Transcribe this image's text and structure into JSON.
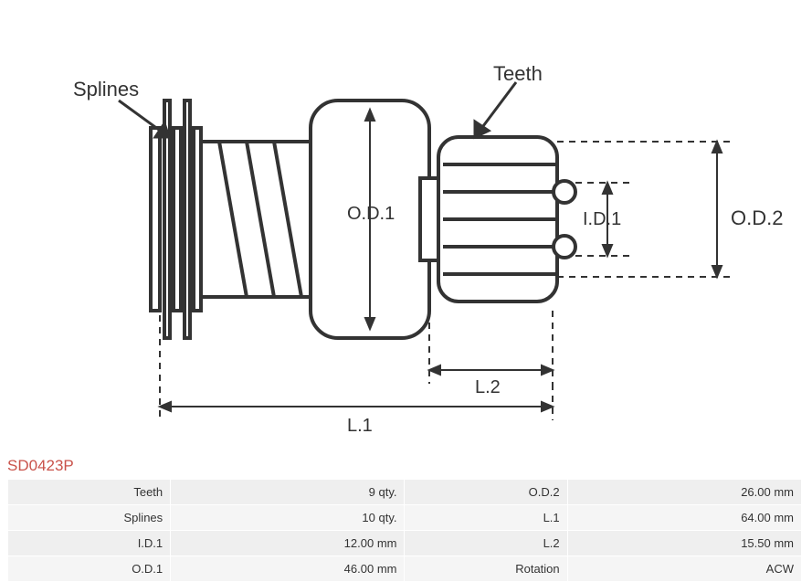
{
  "part_number": "SD0423P",
  "part_number_color": "#c9524a",
  "diagram": {
    "labels": {
      "splines": "Splines",
      "teeth": "Teeth",
      "od1": "O.D.1",
      "id1": "I.D.1",
      "od2": "O.D.2",
      "l1": "L.1",
      "l2": "L.2"
    },
    "style": {
      "stroke_color": "#333333",
      "fill_color": "#ffffff",
      "label_fontsize": 22,
      "small_label_fontsize": 20,
      "stroke_width": 4,
      "dim_stroke_width": 2,
      "dash": "7,6"
    }
  },
  "specs": {
    "rows": [
      {
        "label1": "Teeth",
        "value1": "9 qty.",
        "label2": "O.D.2",
        "value2": "26.00 mm"
      },
      {
        "label1": "Splines",
        "value1": "10 qty.",
        "label2": "L.1",
        "value2": "64.00 mm"
      },
      {
        "label1": "I.D.1",
        "value1": "12.00 mm",
        "label2": "L.2",
        "value2": "15.50 mm"
      },
      {
        "label1": "O.D.1",
        "value1": "46.00 mm",
        "label2": "Rotation",
        "value2": "ACW"
      }
    ],
    "cell_bg": "#efefef",
    "alt_cell_bg": "#f5f5f5"
  }
}
